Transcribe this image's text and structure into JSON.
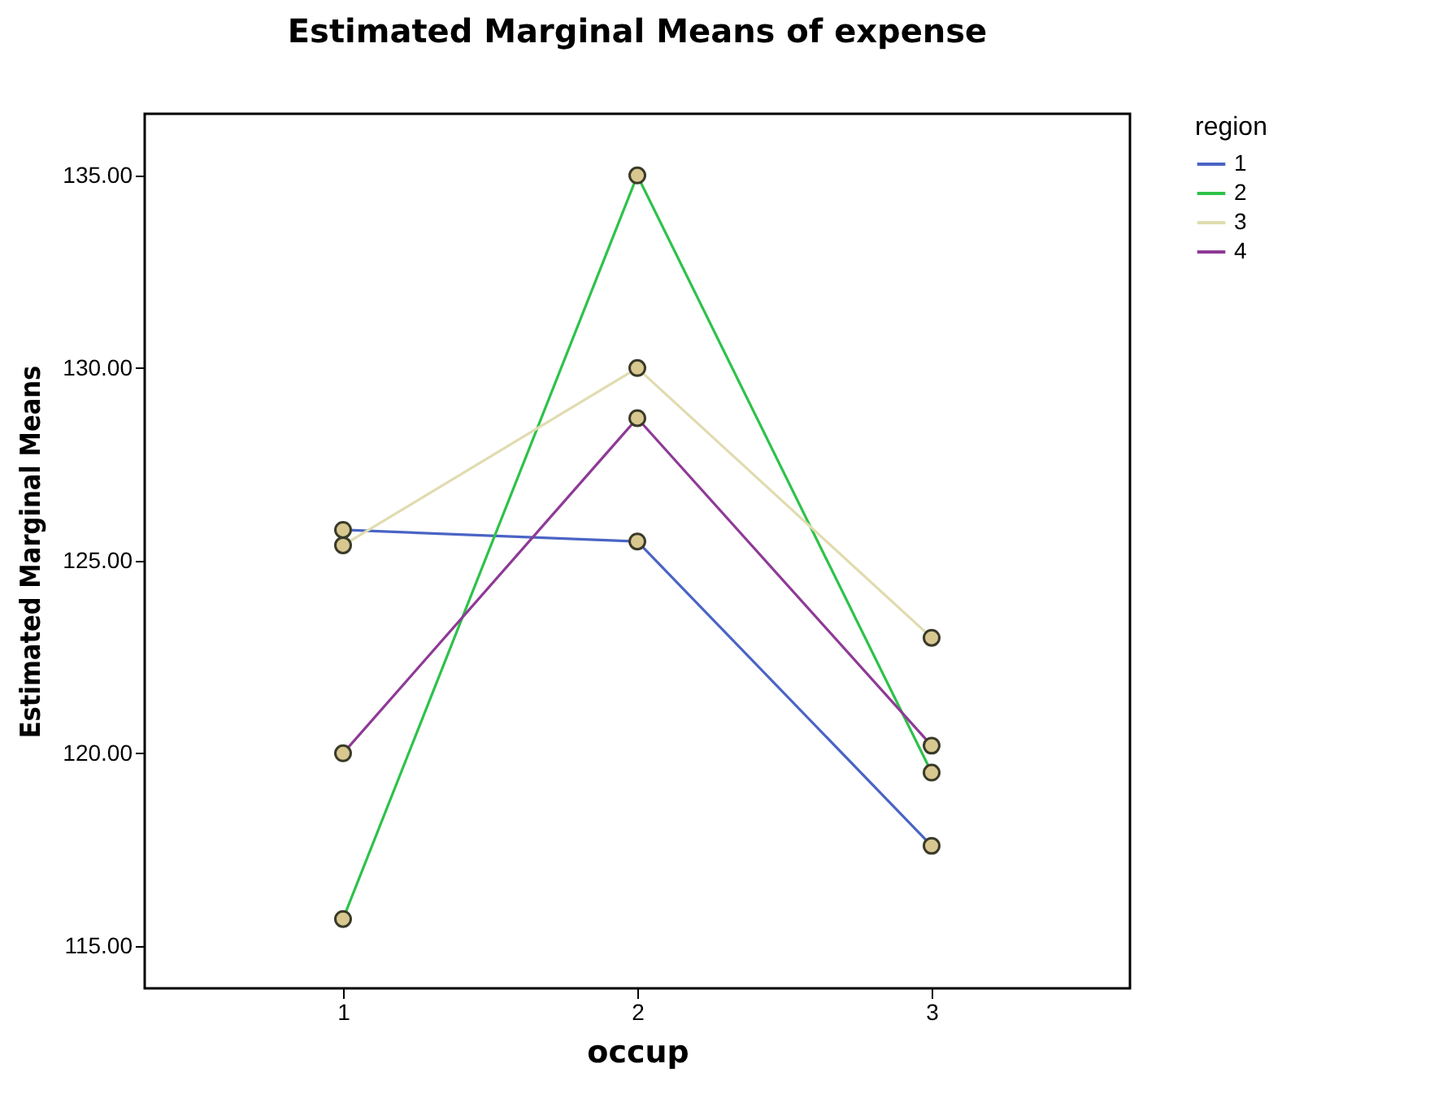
{
  "chart_data": {
    "type": "line",
    "title": "Estimated Marginal Means of expense",
    "xlabel": "occup",
    "ylabel": "Estimated Marginal Means",
    "legend_title": "region",
    "categories": [
      "1",
      "2",
      "3"
    ],
    "series": [
      {
        "name": "1",
        "color": "#4a64c4",
        "values": [
          125.8,
          125.5,
          117.6
        ]
      },
      {
        "name": "2",
        "color": "#2ec24a",
        "values": [
          115.7,
          135.0,
          119.5
        ]
      },
      {
        "name": "3",
        "color": "#e0dcb0",
        "values": [
          125.4,
          130.0,
          123.0
        ]
      },
      {
        "name": "4",
        "color": "#8e3a96",
        "values": [
          120.0,
          128.7,
          120.2
        ]
      }
    ],
    "ylim": [
      113.9,
      136.6
    ],
    "yticks": [
      {
        "value": 115,
        "label": "115.00"
      },
      {
        "value": 120,
        "label": "120.00"
      },
      {
        "value": 125,
        "label": "125.00"
      },
      {
        "value": 130,
        "label": "130.00"
      },
      {
        "value": 135,
        "label": "135.00"
      }
    ],
    "marker": "circle",
    "legend": "top right"
  }
}
